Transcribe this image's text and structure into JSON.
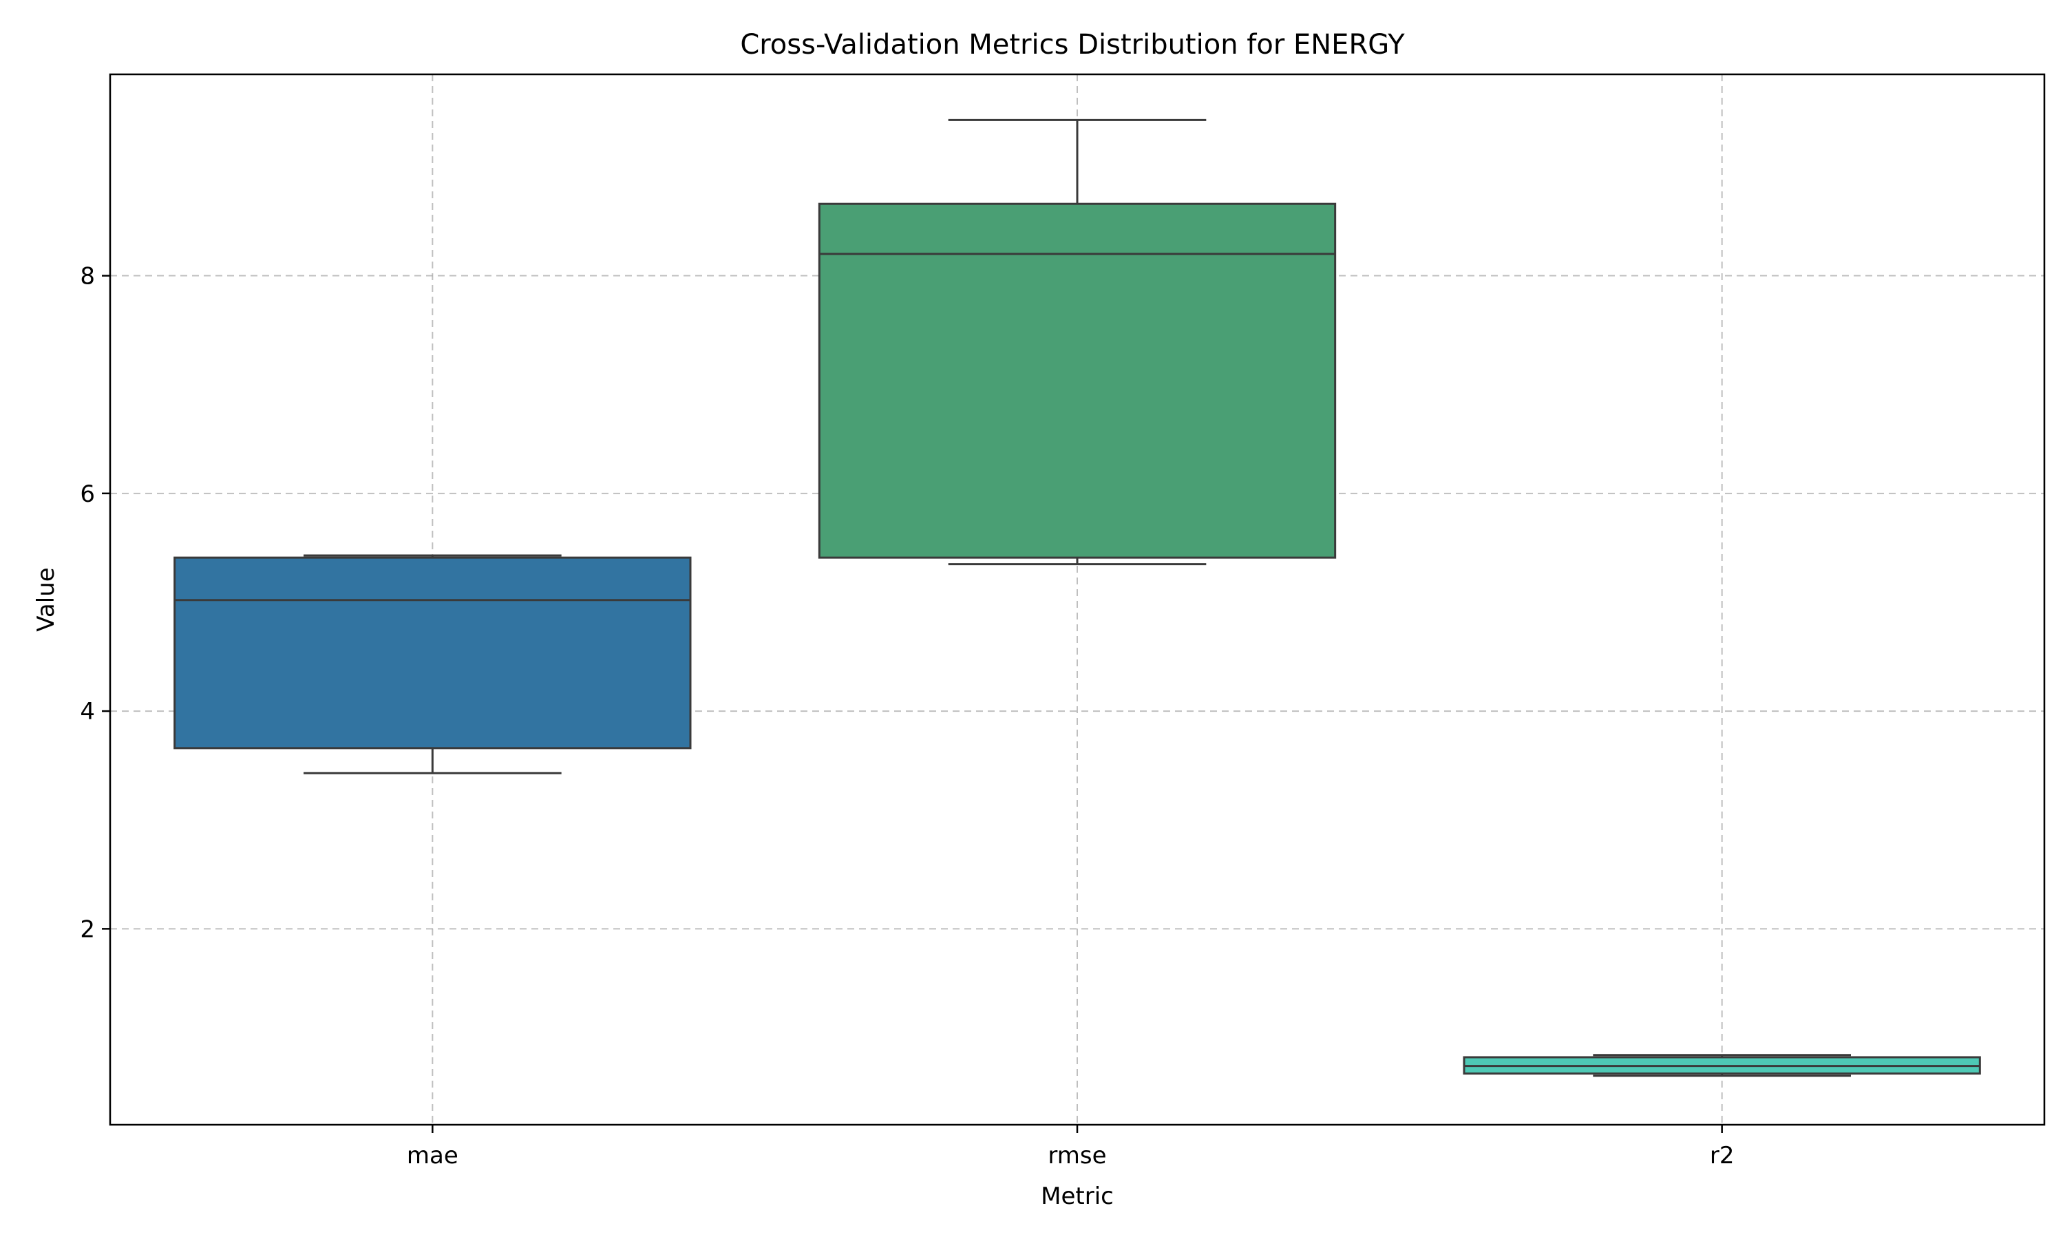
{
  "chart_data": {
    "type": "box",
    "title": "Cross-Validation Metrics Distribution for ENERGY",
    "xlabel": "Metric",
    "ylabel": "Value",
    "categories": [
      "mae",
      "rmse",
      "r2"
    ],
    "ylim": [
      0.2,
      9.85
    ],
    "yticks": [
      2,
      4,
      6,
      8
    ],
    "grid": true,
    "boxes": [
      {
        "category": "mae",
        "whisker_low": 3.43,
        "q1": 3.66,
        "median": 5.02,
        "q3": 5.41,
        "whisker_high": 5.43,
        "color": "#3274a1"
      },
      {
        "category": "rmse",
        "whisker_low": 5.35,
        "q1": 5.41,
        "median": 8.2,
        "q3": 8.66,
        "whisker_high": 9.43,
        "color": "#4a9f74"
      },
      {
        "category": "r2",
        "whisker_low": 0.65,
        "q1": 0.67,
        "median": 0.74,
        "q3": 0.82,
        "whisker_high": 0.84,
        "color": "#4ec9b5"
      }
    ]
  }
}
